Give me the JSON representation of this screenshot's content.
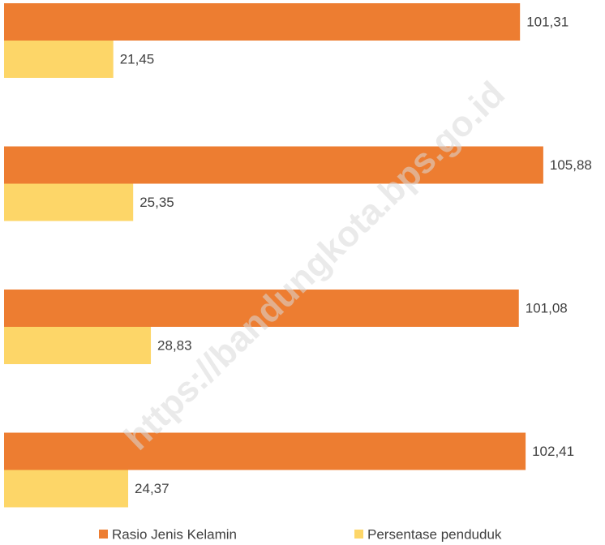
{
  "chart_data": {
    "type": "hbar",
    "watermark": "https://bandungkota.bps.go.id",
    "categories": [
      null,
      null,
      null,
      null
    ],
    "series": [
      {
        "name": "Rasio Jenis Kelamin",
        "color": "#ed7d31",
        "values": [
          101.31,
          105.88,
          101.08,
          102.41
        ],
        "value_labels": [
          "101,31",
          "105,88",
          "101,08",
          "102,41"
        ]
      },
      {
        "name": "Persentase penduduk",
        "color": "#fdd668",
        "values": [
          21.45,
          25.35,
          28.83,
          24.37
        ],
        "value_labels": [
          "21,45",
          "25,35",
          "28,83",
          "24,37"
        ]
      }
    ],
    "xlim": [
      0,
      118
    ],
    "legend": "bottom"
  }
}
